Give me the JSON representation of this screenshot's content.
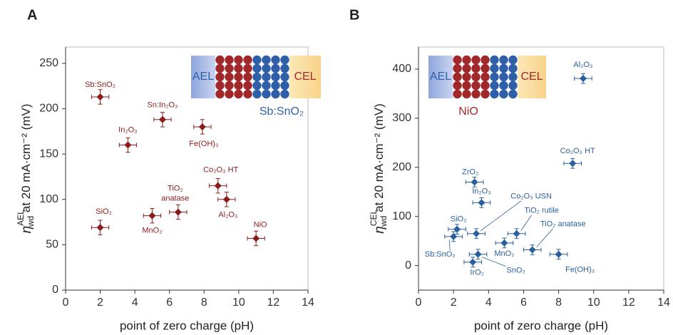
{
  "chart_data": [
    {
      "type": "scatter",
      "panel_label": "A",
      "x_label": "point of zero charge (pH)",
      "y_label": {
        "symbol": "η",
        "sub": "wd",
        "sup": "AEL",
        "text": " at 20 mA·cm⁻² (mV)"
      },
      "inset": {
        "left": "AEL",
        "right": "CEL",
        "label": "Sb:SnO₂"
      },
      "xlim": [
        0,
        14
      ],
      "xticks": [
        0,
        2,
        4,
        6,
        8,
        10,
        12,
        14
      ],
      "ylim": [
        0,
        268
      ],
      "yticks": [
        0,
        50,
        100,
        150,
        200,
        250
      ],
      "grid": false,
      "series": [
        {
          "color": "#8b1c1c",
          "labels": [
            "Sb:SnO₂",
            "In₂O₃",
            "Sn:In₂O₃",
            "Fe(OH)₃",
            "Co₂O₃ HT",
            "Al₂O₃",
            "NiO",
            [
              "TiO₂",
              "anatase"
            ],
            "MnO₂",
            "SiO₂"
          ],
          "x": [
            2.0,
            3.6,
            5.6,
            7.9,
            8.8,
            9.3,
            11.0,
            6.5,
            5.0,
            2.0
          ],
          "values": [
            213,
            160,
            188,
            180,
            115,
            100,
            57,
            86,
            82,
            69
          ],
          "x_error": [
            0.5,
            0.5,
            0.5,
            0.5,
            0.5,
            0.5,
            0.5,
            0.5,
            0.5,
            0.5
          ],
          "y_error": [
            8,
            8,
            8,
            8,
            8,
            8,
            8,
            8,
            8,
            8
          ]
        }
      ]
    },
    {
      "type": "scatter",
      "panel_label": "B",
      "x_label": "point of zero charge (pH)",
      "y_label": {
        "symbol": "η",
        "sub": "wd",
        "sup": "CEL",
        "text": " at 20 mA·cm⁻² (mV)"
      },
      "inset": {
        "left": "AEL",
        "right": "CEL",
        "label": "NiO"
      },
      "xlim": [
        0,
        14
      ],
      "xticks": [
        0,
        2,
        4,
        6,
        8,
        10,
        12,
        14
      ],
      "ylim": [
        -50,
        445
      ],
      "yticks": [
        0,
        100,
        200,
        300,
        400
      ],
      "grid": false,
      "series": [
        {
          "color": "#2a5f9e",
          "labels": [
            "Al₂O₃",
            "Co₂O₃ HT",
            "ZrO₂",
            "In₂O₃",
            "SiO₂",
            "Sb:SnO₂",
            "Co₂O₃ USN",
            "TiO₂ rutile",
            "MnO₂",
            "TiO₂ anatase",
            "Fe(OH)₃",
            "SnO₂",
            "IrO₂"
          ],
          "x": [
            9.4,
            8.8,
            3.2,
            3.6,
            2.2,
            2.0,
            3.3,
            5.6,
            4.9,
            6.5,
            8.0,
            3.4,
            3.1
          ],
          "values": [
            381,
            208,
            170,
            128,
            74,
            59,
            65,
            65,
            46,
            32,
            23,
            23,
            7
          ],
          "x_error": [
            0.5,
            0.5,
            0.5,
            0.5,
            0.5,
            0.5,
            0.5,
            0.5,
            0.5,
            0.5,
            0.5,
            0.5,
            0.5
          ],
          "y_error": [
            10,
            10,
            10,
            10,
            10,
            10,
            10,
            10,
            10,
            10,
            10,
            10,
            10
          ]
        }
      ]
    }
  ]
}
